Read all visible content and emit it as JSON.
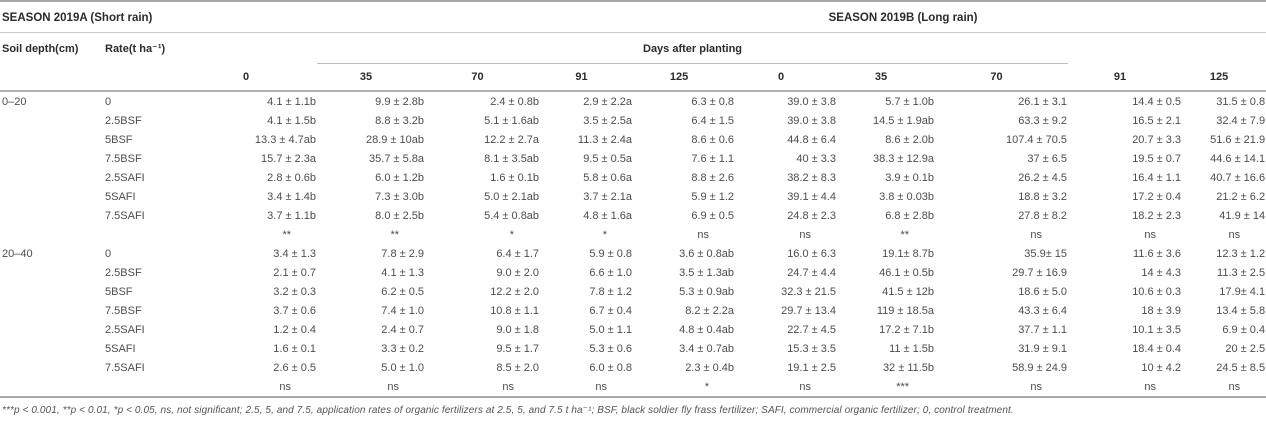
{
  "table": {
    "season_a_label": "SEASON 2019A (Short rain)",
    "season_b_label": "SEASON 2019B (Long rain)",
    "soil_depth_header": "Soil depth(cm)",
    "rate_header": "Rate(t ha⁻¹)",
    "days_header": "Days after planting",
    "day_columns": [
      "0",
      "35",
      "70",
      "91",
      "125",
      "0",
      "35",
      "70",
      "91",
      "125"
    ],
    "sections": [
      {
        "depth": "0–20",
        "rows": [
          {
            "rate": "0",
            "values": [
              "4.1 ± 1.1b",
              "9.9 ± 2.8b",
              "2.4 ± 0.8b",
              "2.9 ± 2.2a",
              "6.3 ± 0.8",
              "39.0 ± 3.8",
              "5.7 ± 1.0b",
              "26.1 ± 3.1",
              "14.4 ± 0.5",
              "31.5 ± 0.8"
            ]
          },
          {
            "rate": "2.5BSF",
            "values": [
              "4.1 ± 1.5b",
              "8.8 ± 3.2b",
              "5.1 ± 1.6ab",
              "3.5 ± 2.5a",
              "6.4 ± 1.5",
              "39.0 ± 3.8",
              "14.5 ± 1.9ab",
              "63.3 ± 9.2",
              "16.5 ± 2.1",
              "32.4 ± 7.9"
            ]
          },
          {
            "rate": "5BSF",
            "values": [
              "13.3 ± 4.7ab",
              "28.9 ± 10ab",
              "12.2 ± 2.7a",
              "11.3 ± 2.4a",
              "8.6 ± 0.6",
              "44.8 ± 6.4",
              "8.6 ± 2.0b",
              "107.4 ± 70.5",
              "20.7 ± 3.3",
              "51.6 ± 21.9"
            ]
          },
          {
            "rate": "7.5BSF",
            "values": [
              "15.7 ± 2.3a",
              "35.7 ± 5.8a",
              "8.1 ± 3.5ab",
              "9.5 ± 0.5a",
              "7.6 ± 1.1",
              "40 ± 3.3",
              "38.3 ± 12.9a",
              "37 ± 6.5",
              "19.5 ± 0.7",
              "44.6 ± 14.1"
            ]
          },
          {
            "rate": "2.5SAFI",
            "values": [
              "2.8 ± 0.6b",
              "6.0 ± 1.2b",
              "1.6 ± 0.1b",
              "5.8 ± 0.6a",
              "8.8 ± 2.6",
              "38.2 ± 8.3",
              "3.9 ± 0.1b",
              "26.2 ± 4.5",
              "16.4 ± 1.1",
              "40.7 ± 16.6"
            ]
          },
          {
            "rate": "5SAFI",
            "values": [
              "3.4 ± 1.4b",
              "7.3 ± 3.0b",
              "5.0 ± 2.1ab",
              "3.7 ± 2.1a",
              "5.9 ± 1.2",
              "39.1 ± 4.4",
              "3.8 ± 0.03b",
              "18.8 ± 3.2",
              "17.2 ± 0.4",
              "21.2 ± 6.2"
            ]
          },
          {
            "rate": "7.5SAFI",
            "values": [
              "3.7 ± 1.1b",
              "8.0 ± 2.5b",
              "5.4 ± 0.8ab",
              "4.8 ± 1.6a",
              "6.9 ± 0.5",
              "24.8 ± 2.3",
              "6.8 ± 2.8b",
              "27.8 ± 8.2",
              "18.2 ± 2.3",
              "41.9 ± 14"
            ]
          }
        ],
        "significance": [
          "**",
          "**",
          "*",
          "*",
          "ns",
          "ns",
          "**",
          "ns",
          "ns",
          "ns"
        ]
      },
      {
        "depth": "20–40",
        "rows": [
          {
            "rate": "0",
            "values": [
              "3.4 ± 1.3",
              "7.8 ± 2.9",
              "6.4 ± 1.7",
              "5.9 ± 0.8",
              "3.6 ± 0.8ab",
              "16.0 ± 6.3",
              "19.1± 8.7b",
              "35.9± 15",
              "11.6 ± 3.6",
              "12.3 ± 1.2"
            ]
          },
          {
            "rate": "2.5BSF",
            "values": [
              "2.1 ± 0.7",
              "4.1 ± 1.3",
              "9.0 ± 2.0",
              "6.6 ± 1.0",
              "3.5 ± 1.3ab",
              "24.7 ± 4.4",
              "46.1 ± 0.5b",
              "29.7 ± 16.9",
              "14 ± 4.3",
              "11.3 ± 2.5"
            ]
          },
          {
            "rate": "5BSF",
            "values": [
              "3.2 ± 0.3",
              "6.2 ± 0.5",
              "12.2 ± 2.0",
              "7.8 ± 1.2",
              "5.3 ± 0.9ab",
              "32.3 ± 21.5",
              "41.5 ± 12b",
              "18.6 ± 5.0",
              "10.6 ± 0.3",
              "17.9± 4.1"
            ]
          },
          {
            "rate": "7.5BSF",
            "values": [
              "3.7 ± 0.6",
              "7.4 ± 1.0",
              "10.8 ± 1.1",
              "6.7 ± 0.4",
              "8.2 ± 2.2a",
              "29.7 ± 13.4",
              "119 ± 18.5a",
              "43.3 ± 6.4",
              "18 ± 3.9",
              "13.4 ± 5.8"
            ]
          },
          {
            "rate": "2.5SAFI",
            "values": [
              "1.2 ± 0.4",
              "2.4 ± 0.7",
              "9.0 ± 1.8",
              "5.0 ± 1.1",
              "4.8 ± 0.4ab",
              "22.7 ± 4.5",
              "17.2 ± 7.1b",
              "37.7 ± 1.1",
              "10.1 ± 3.5",
              "6.9 ± 0.4"
            ]
          },
          {
            "rate": "5SAFI",
            "values": [
              "1.6 ± 0.1",
              "3.3 ± 0.2",
              "9.5 ± 1.7",
              "5.3 ± 0.6",
              "3.4 ± 0.7ab",
              "15.3 ± 3.5",
              "11 ± 1.5b",
              "31.9 ± 9.1",
              "18.4 ± 0.4",
              "20 ± 2.5"
            ]
          },
          {
            "rate": "7.5SAFI",
            "values": [
              "2.6 ± 0.5",
              "5.0 ± 1.0",
              "8.5 ± 2.0",
              "6.0 ± 0.8",
              "2.3 ± 0.4b",
              "19.1 ± 2.5",
              "32 ± 11.5b",
              "58.9 ± 24.9",
              "10 ± 4.2",
              "24.5 ± 8.5"
            ]
          }
        ],
        "significance": [
          "ns",
          "ns",
          "ns",
          "ns",
          "*",
          "ns",
          "***",
          "ns",
          "ns",
          "ns"
        ]
      }
    ],
    "footnote": "***p < 0.001, **p < 0.01, *p < 0.05, ns, not significant; 2.5, 5, and 7.5, application rates of organic fertilizers at 2.5, 5, and 7.5 t ha⁻¹; BSF, black soldier fly frass fertilizer; SAFI, commercial organic fertilizer; 0, control treatment."
  }
}
